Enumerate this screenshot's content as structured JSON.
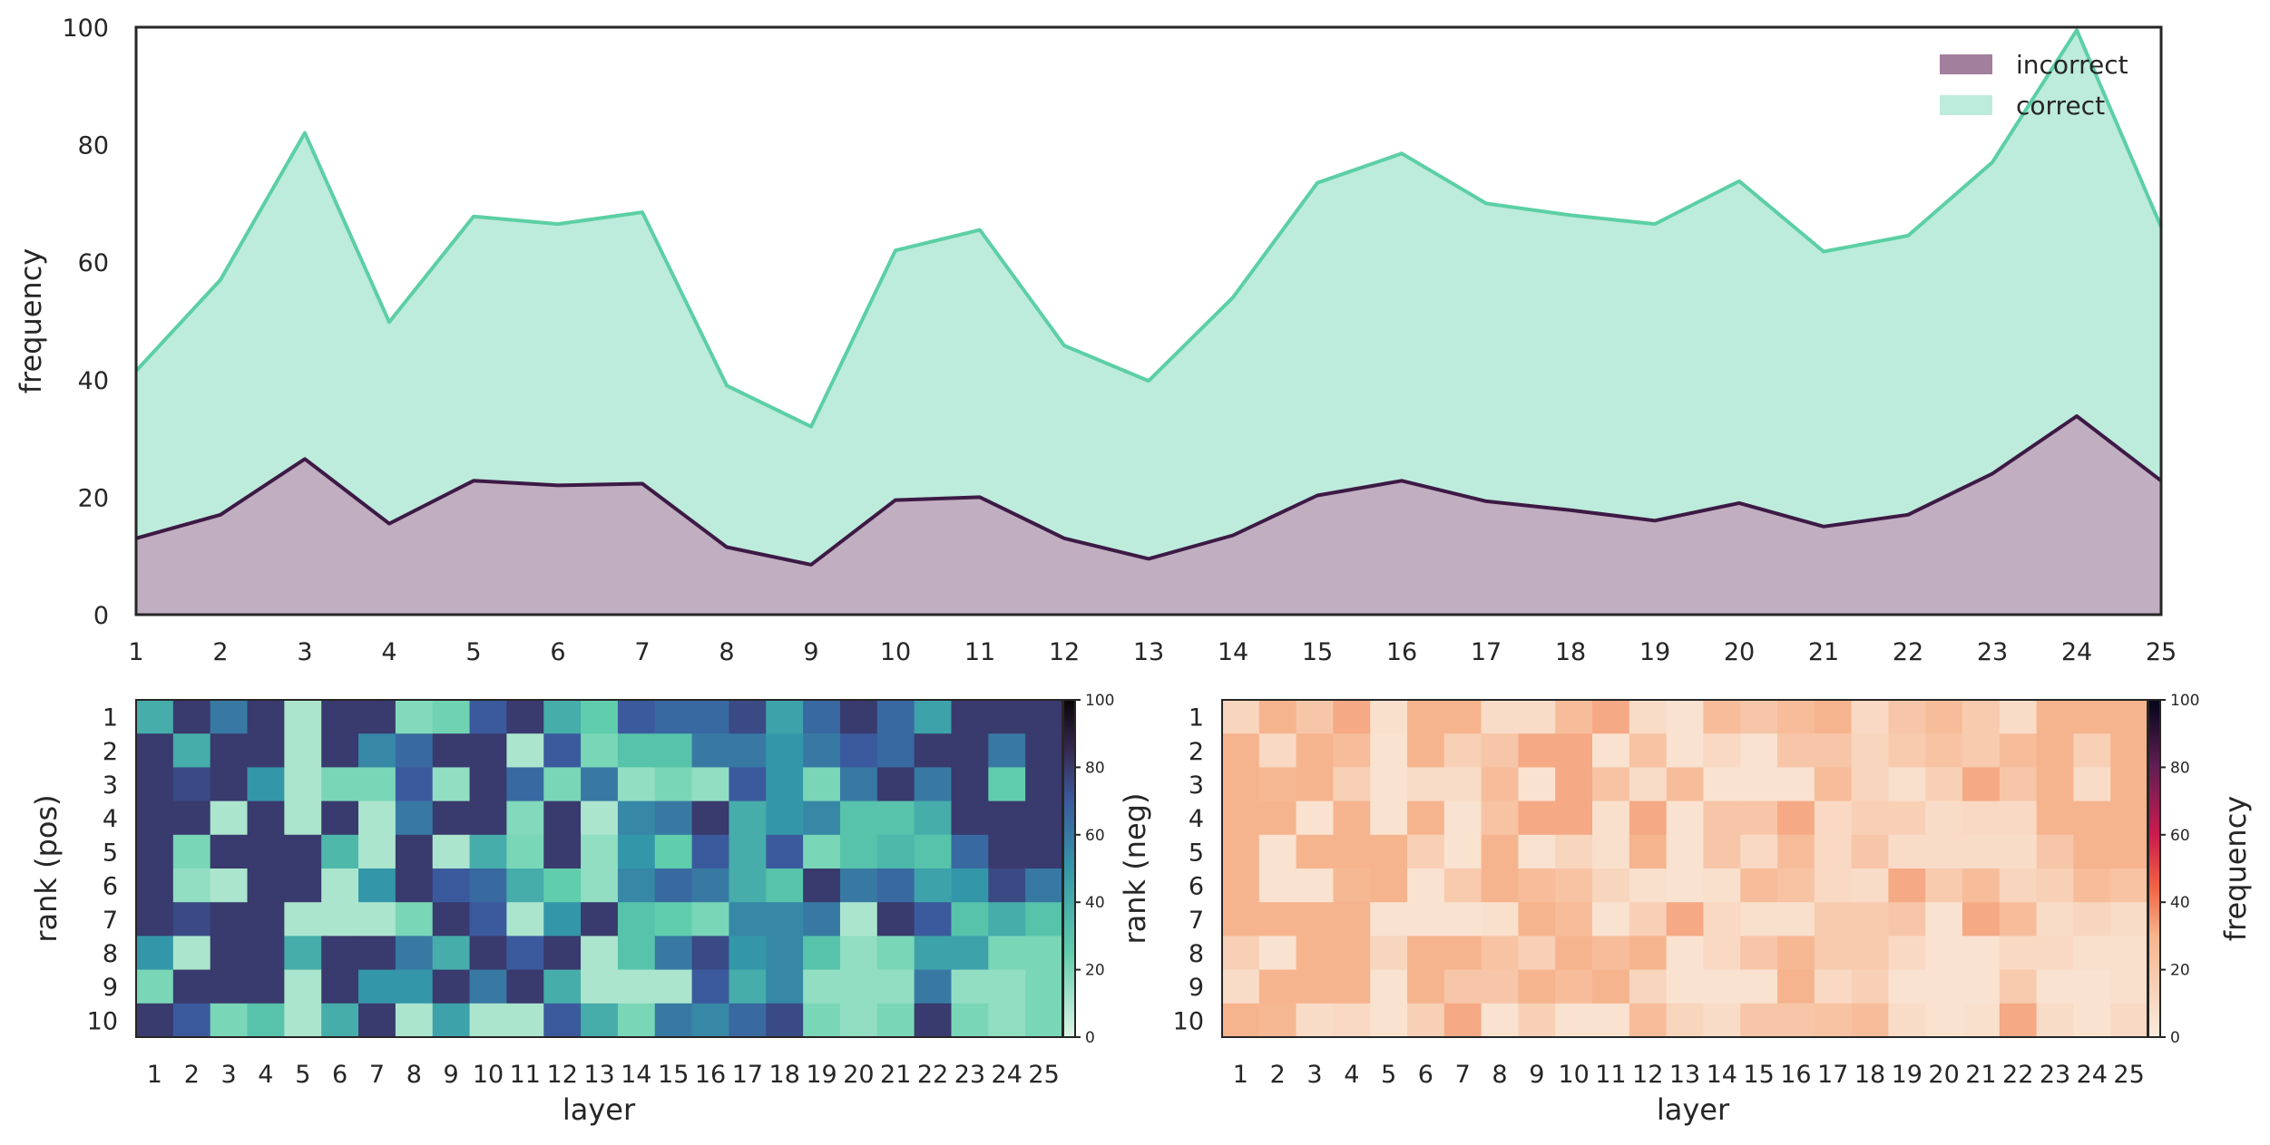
{
  "colors": {
    "incorrect_line": "#3d1a45",
    "incorrect_fill": "#a37f9e",
    "correct_line": "#5ccfa5",
    "correct_fill": "#bdebdc"
  },
  "chart_data": [
    {
      "type": "area",
      "x": [
        1,
        2,
        3,
        4,
        5,
        6,
        7,
        8,
        9,
        10,
        11,
        12,
        13,
        14,
        15,
        16,
        17,
        18,
        19,
        20,
        21,
        22,
        23,
        24,
        25
      ],
      "series": [
        {
          "name": "incorrect",
          "values": [
            13,
            17,
            26.5,
            15.5,
            22.8,
            22,
            22.3,
            11.5,
            8.5,
            19.5,
            20,
            13,
            9.5,
            13.5,
            20.3,
            22.8,
            19.3,
            17.8,
            16,
            19,
            15,
            17,
            24,
            33.8,
            22.8
          ]
        },
        {
          "name": "correct",
          "values": [
            41.5,
            57,
            82,
            49.8,
            67.8,
            66.5,
            68.5,
            39,
            32,
            62,
            65.5,
            45.8,
            39.8,
            54,
            73.5,
            78.5,
            70,
            68,
            66.5,
            73.8,
            61.8,
            64.5,
            77,
            99.5,
            66
          ]
        }
      ],
      "title": "",
      "xlabel": "",
      "ylabel": "frequency",
      "xlim": [
        1,
        25
      ],
      "ylim": [
        0,
        100
      ],
      "yticks": [
        0,
        20,
        40,
        60,
        80,
        100
      ],
      "xticks": [
        1,
        2,
        3,
        4,
        5,
        6,
        7,
        8,
        9,
        10,
        11,
        12,
        13,
        14,
        15,
        16,
        17,
        18,
        19,
        20,
        21,
        22,
        23,
        24,
        25
      ],
      "legend": [
        "incorrect",
        "correct"
      ],
      "legend_position": "top-right",
      "grid": false
    },
    {
      "type": "heatmap",
      "colormap": "mako_r",
      "xlabel": "layer",
      "ylabel": "rank (pos)",
      "x_categories": [
        "1",
        "2",
        "3",
        "4",
        "5",
        "6",
        "7",
        "8",
        "9",
        "10",
        "11",
        "12",
        "13",
        "14",
        "15",
        "16",
        "17",
        "18",
        "19",
        "20",
        "21",
        "22",
        "23",
        "24",
        "25"
      ],
      "y_categories": [
        "1",
        "2",
        "3",
        "4",
        "5",
        "6",
        "7",
        "8",
        "9",
        "10"
      ],
      "values": [
        [
          40,
          80,
          60,
          80,
          10,
          80,
          80,
          18,
          22,
          70,
          80,
          40,
          25,
          70,
          65,
          65,
          75,
          45,
          65,
          80,
          65,
          45,
          80,
          80,
          80
        ],
        [
          80,
          40,
          80,
          80,
          10,
          80,
          55,
          65,
          80,
          80,
          10,
          70,
          20,
          30,
          30,
          60,
          60,
          50,
          60,
          70,
          65,
          80,
          80,
          60,
          80
        ],
        [
          80,
          75,
          80,
          50,
          10,
          20,
          20,
          70,
          15,
          80,
          65,
          20,
          60,
          15,
          20,
          15,
          70,
          50,
          20,
          60,
          80,
          60,
          80,
          25,
          80
        ],
        [
          80,
          80,
          10,
          80,
          10,
          80,
          10,
          60,
          80,
          80,
          18,
          80,
          10,
          55,
          60,
          80,
          40,
          50,
          55,
          30,
          30,
          40,
          80,
          80,
          80
        ],
        [
          80,
          20,
          80,
          80,
          80,
          35,
          10,
          80,
          10,
          40,
          20,
          80,
          15,
          50,
          25,
          70,
          40,
          70,
          20,
          30,
          35,
          30,
          65,
          80,
          80
        ],
        [
          80,
          15,
          10,
          80,
          80,
          10,
          50,
          80,
          70,
          65,
          40,
          25,
          15,
          55,
          65,
          60,
          40,
          30,
          80,
          60,
          65,
          45,
          50,
          75,
          60
        ],
        [
          80,
          75,
          80,
          80,
          10,
          10,
          10,
          20,
          80,
          70,
          10,
          50,
          80,
          30,
          25,
          20,
          55,
          55,
          60,
          10,
          80,
          70,
          30,
          40,
          30
        ],
        [
          50,
          10,
          80,
          80,
          40,
          80,
          80,
          60,
          40,
          80,
          70,
          80,
          10,
          30,
          60,
          75,
          50,
          55,
          30,
          15,
          20,
          45,
          45,
          20,
          20
        ],
        [
          20,
          80,
          80,
          80,
          10,
          80,
          50,
          50,
          80,
          60,
          80,
          40,
          10,
          10,
          10,
          70,
          40,
          55,
          15,
          15,
          15,
          60,
          15,
          15,
          20
        ],
        [
          80,
          70,
          20,
          30,
          10,
          40,
          80,
          10,
          45,
          10,
          10,
          70,
          40,
          20,
          60,
          55,
          65,
          75,
          20,
          15,
          20,
          80,
          20,
          15,
          20
        ]
      ],
      "colorbar": {
        "min": 0,
        "max": 100,
        "ticks": [
          0,
          20,
          40,
          60,
          80,
          100
        ]
      }
    },
    {
      "type": "heatmap",
      "colormap": "rocket_r",
      "xlabel": "layer",
      "ylabel": "rank (neg)",
      "x_categories": [
        "1",
        "2",
        "3",
        "4",
        "5",
        "6",
        "7",
        "8",
        "9",
        "10",
        "11",
        "12",
        "13",
        "14",
        "15",
        "16",
        "17",
        "18",
        "19",
        "20",
        "21",
        "22",
        "23",
        "24",
        "25"
      ],
      "y_categories": [
        "1",
        "2",
        "3",
        "4",
        "5",
        "6",
        "7",
        "8",
        "9",
        "10"
      ],
      "values": [
        [
          12,
          30,
          20,
          32,
          6,
          30,
          30,
          8,
          8,
          25,
          32,
          8,
          5,
          25,
          20,
          25,
          30,
          10,
          20,
          25,
          18,
          8,
          30,
          30,
          30
        ],
        [
          30,
          10,
          30,
          25,
          5,
          30,
          15,
          20,
          32,
          32,
          5,
          22,
          5,
          10,
          5,
          20,
          20,
          12,
          18,
          22,
          18,
          25,
          30,
          15,
          30
        ],
        [
          30,
          28,
          30,
          15,
          5,
          8,
          8,
          25,
          5,
          32,
          22,
          8,
          25,
          5,
          5,
          5,
          25,
          12,
          6,
          15,
          32,
          20,
          30,
          8,
          30
        ],
        [
          30,
          30,
          5,
          30,
          5,
          30,
          5,
          22,
          32,
          32,
          6,
          32,
          5,
          20,
          20,
          32,
          10,
          15,
          15,
          8,
          10,
          10,
          30,
          30,
          30
        ],
        [
          30,
          5,
          30,
          30,
          30,
          15,
          5,
          30,
          5,
          12,
          6,
          30,
          5,
          20,
          10,
          25,
          10,
          20,
          8,
          8,
          8,
          8,
          20,
          30,
          30
        ],
        [
          30,
          5,
          5,
          28,
          30,
          5,
          18,
          30,
          25,
          22,
          12,
          6,
          5,
          6,
          25,
          22,
          10,
          8,
          32,
          18,
          25,
          12,
          15,
          25,
          22
        ],
        [
          30,
          30,
          30,
          30,
          5,
          5,
          5,
          6,
          30,
          25,
          5,
          15,
          32,
          10,
          6,
          6,
          18,
          18,
          20,
          5,
          32,
          25,
          8,
          12,
          8
        ],
        [
          15,
          5,
          30,
          30,
          12,
          30,
          30,
          22,
          15,
          30,
          25,
          30,
          5,
          10,
          20,
          28,
          18,
          18,
          10,
          5,
          5,
          10,
          10,
          6,
          6
        ],
        [
          8,
          30,
          30,
          30,
          5,
          30,
          20,
          20,
          30,
          25,
          30,
          12,
          5,
          5,
          5,
          30,
          10,
          15,
          5,
          5,
          5,
          18,
          5,
          5,
          6
        ],
        [
          30,
          28,
          8,
          10,
          5,
          15,
          32,
          5,
          15,
          5,
          5,
          25,
          12,
          8,
          20,
          20,
          22,
          25,
          8,
          5,
          6,
          32,
          8,
          5,
          10
        ]
      ],
      "colorbar": {
        "min": 0,
        "max": 100,
        "ticks": [
          0,
          20,
          40,
          60,
          80,
          100
        ],
        "label": "frequency"
      }
    }
  ]
}
